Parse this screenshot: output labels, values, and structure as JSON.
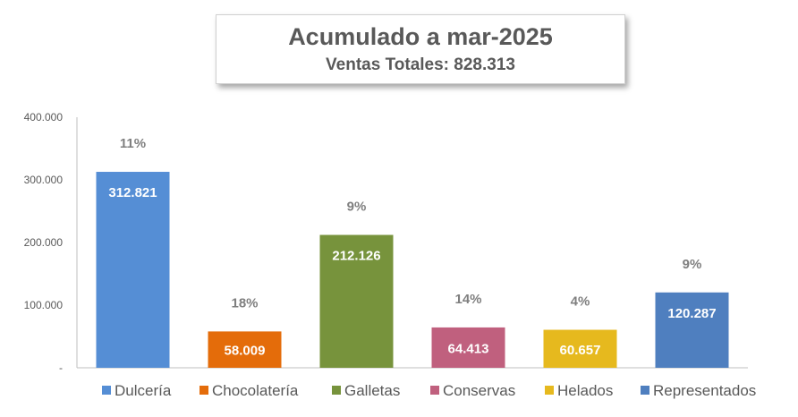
{
  "chart_data": {
    "type": "bar",
    "title": "Acumulado a mar-2025",
    "subtitle": "Ventas Totales: 828.313",
    "xlabel": "",
    "ylabel": "",
    "ylim": [
      0,
      400000
    ],
    "yticks": [
      0,
      100000,
      200000,
      300000,
      400000
    ],
    "ytick_labels": [
      "-",
      "100.000",
      "200.000",
      "300.000",
      "400.000"
    ],
    "grid": false,
    "legend_position": "bottom",
    "categories": [
      "Dulcería",
      "Chocolatería",
      "Galletas",
      "Conservas",
      "Helados",
      "Representados"
    ],
    "values": [
      312821,
      58009,
      212126,
      64413,
      60657,
      120287
    ],
    "value_labels": [
      "312.821",
      "58.009",
      "212.126",
      "64.413",
      "60.657",
      "120.287"
    ],
    "pct_labels": [
      "11%",
      "18%",
      "9%",
      "14%",
      "4%",
      "9%"
    ],
    "colors": [
      "#558ed5",
      "#e46c0a",
      "#77933c",
      "#c0607e",
      "#e6b91e",
      "#4f7fbf"
    ]
  }
}
